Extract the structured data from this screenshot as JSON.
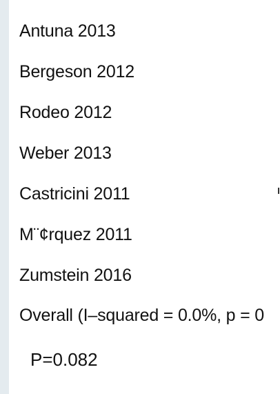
{
  "chart_data": {
    "type": "table",
    "studies": [
      "Antuna 2013",
      "Bergeson 2012",
      "Rodeo 2012",
      "Weber 2013",
      "Castricini 2011",
      "M¨¢rquez 2011",
      "Zumstein 2016"
    ],
    "overall_label": "Overall  (I–squared = 0.0%, p = 0",
    "p_value_text": "P=0.082"
  }
}
